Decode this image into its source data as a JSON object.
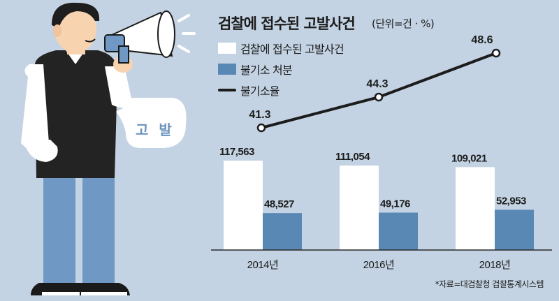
{
  "title": "검찰에 접수된 고발사건",
  "unit": "(단위=건 · %)",
  "speech_bubble": "고 발",
  "source": "*자료=대검찰청 검찰통계시스템",
  "colors": {
    "background": "#c4d3e3",
    "bar_received": "#ffffff",
    "bar_nonprosecution": "#5a88b5",
    "line": "#1c1c1c"
  },
  "chart_data": {
    "type": "bar",
    "title": "검찰에 접수된 고발사건",
    "categories": [
      "2014년",
      "2016년",
      "2018년"
    ],
    "series": [
      {
        "name": "검찰에 접수된 고발사건",
        "type": "bar",
        "values": [
          117563,
          111054,
          109021
        ],
        "labels": [
          "117,563",
          "111,054",
          "109,021"
        ]
      },
      {
        "name": "불기소 처분",
        "type": "bar",
        "values": [
          48527,
          49176,
          52953
        ],
        "labels": [
          "48,527",
          "49,176",
          "52,953"
        ]
      },
      {
        "name": "불기소율",
        "type": "line",
        "values": [
          41.3,
          44.3,
          48.6
        ],
        "labels": [
          "41.3",
          "44.3",
          "48.6"
        ]
      }
    ]
  }
}
